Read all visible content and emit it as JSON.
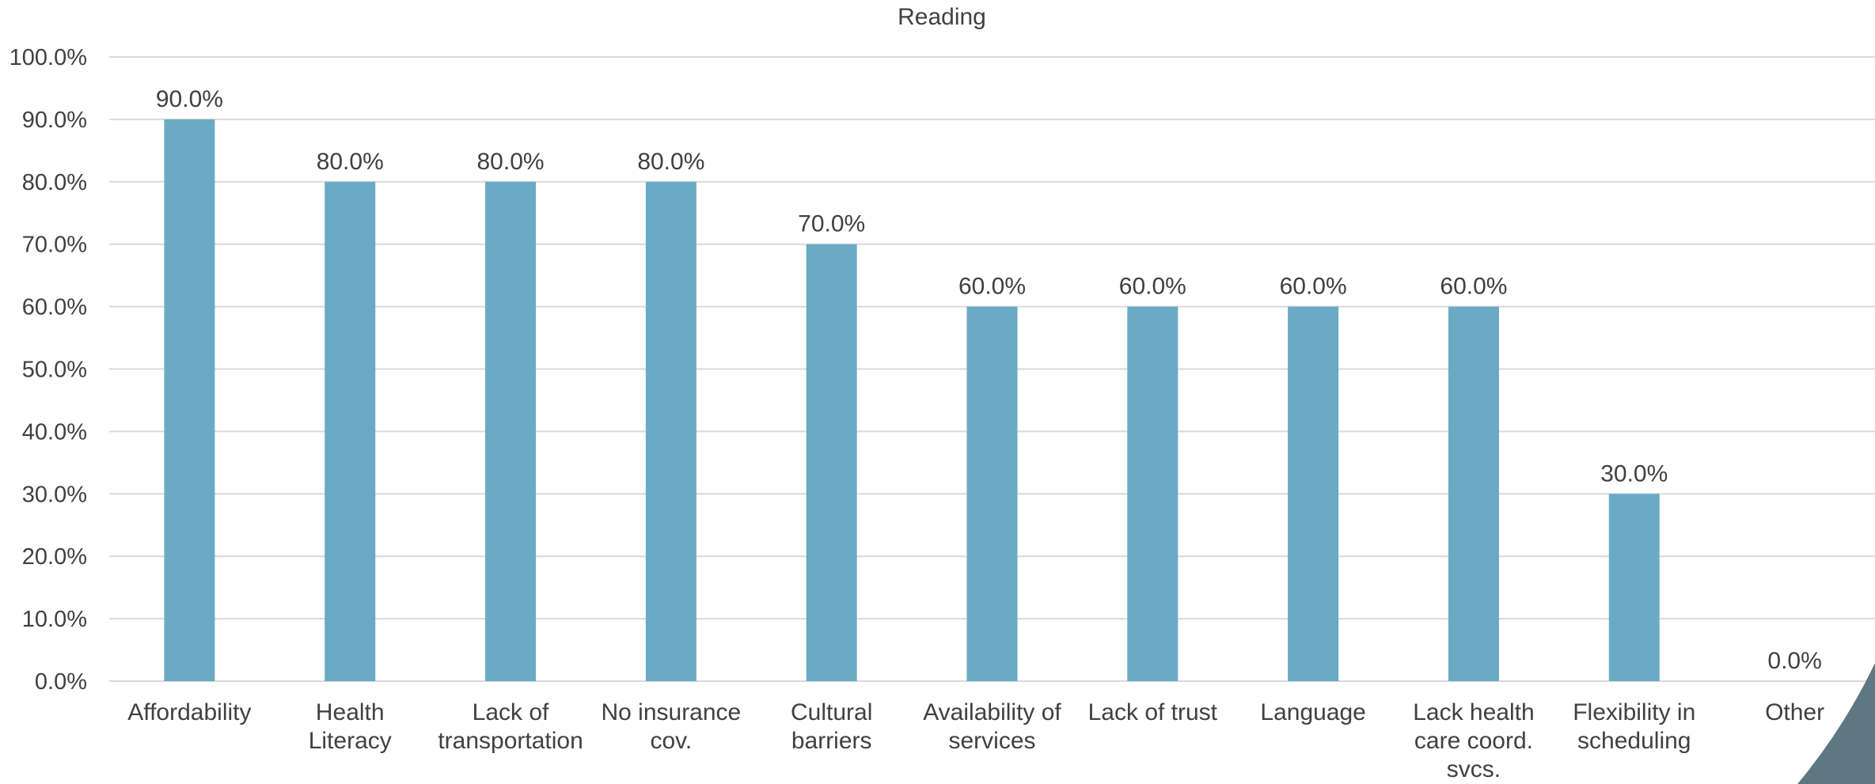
{
  "chart_data": {
    "type": "bar",
    "title": "Reading",
    "xlabel": "",
    "ylabel": "",
    "categories": [
      [
        "Affordability"
      ],
      [
        "Health",
        "Literacy"
      ],
      [
        "Lack of",
        "transportation"
      ],
      [
        "No insurance",
        "cov."
      ],
      [
        "Cultural",
        "barriers"
      ],
      [
        "Availability of",
        "services"
      ],
      [
        "Lack of trust"
      ],
      [
        "Language"
      ],
      [
        "Lack health",
        "care coord.",
        "svcs."
      ],
      [
        "Flexibility in",
        "scheduling"
      ],
      [
        "Other"
      ]
    ],
    "values": [
      90.0,
      80.0,
      80.0,
      80.0,
      70.0,
      60.0,
      60.0,
      60.0,
      60.0,
      30.0,
      0.0
    ],
    "data_labels": [
      "90.0%",
      "80.0%",
      "80.0%",
      "80.0%",
      "70.0%",
      "60.0%",
      "60.0%",
      "60.0%",
      "60.0%",
      "30.0%",
      "0.0%"
    ],
    "ylim": [
      0,
      100
    ],
    "yticks": [
      0,
      10,
      20,
      30,
      40,
      50,
      60,
      70,
      80,
      90,
      100
    ],
    "ytick_labels": [
      "0.0%",
      "10.0%",
      "20.0%",
      "30.0%",
      "40.0%",
      "50.0%",
      "60.0%",
      "70.0%",
      "80.0%",
      "90.0%",
      "100.0%"
    ],
    "grid": true,
    "legend": "none",
    "colors": {
      "bar": "#6aaac5",
      "grid": "#d9d9d9",
      "text": "#404040",
      "corner_accent": "#5f7780"
    }
  }
}
